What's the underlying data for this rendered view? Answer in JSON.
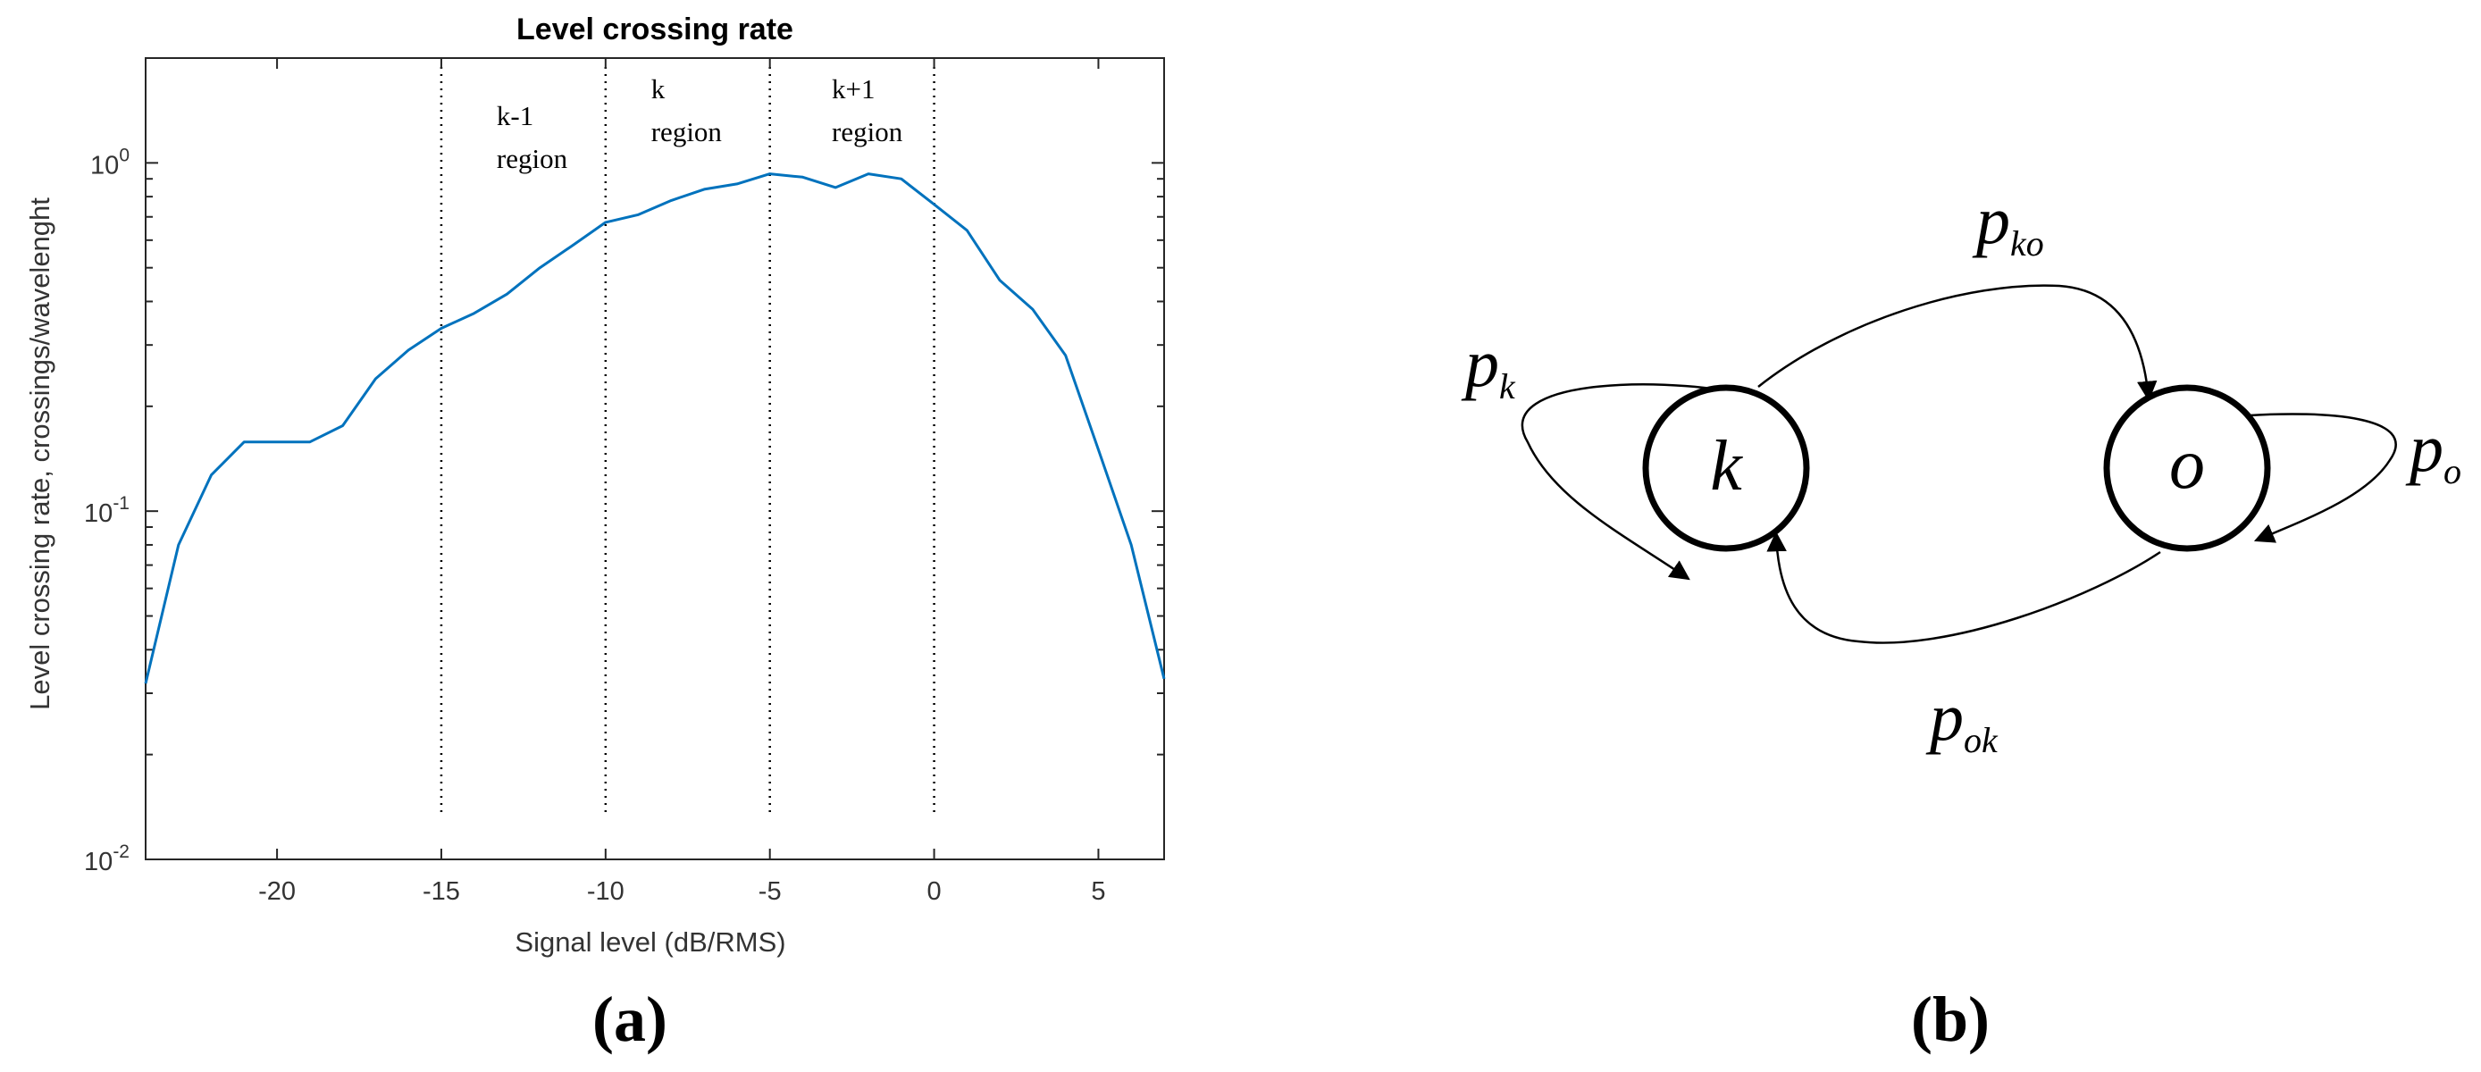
{
  "chart_data": {
    "type": "line",
    "title": "Level crossing rate",
    "xlabel": "Signal level (dB/RMS)",
    "ylabel": "Level crossing rate, crossings/wavelenght",
    "xlim": [
      -24,
      7
    ],
    "ylim": [
      0.01,
      2
    ],
    "yscale": "log",
    "grid": false,
    "x_ticks": [
      "-20",
      "-15",
      "-10",
      "-5",
      "0",
      "5"
    ],
    "y_ticks": [
      {
        "base": "10",
        "exp": "-2"
      },
      {
        "base": "10",
        "exp": "-1"
      },
      {
        "base": "10",
        "exp": "0"
      }
    ],
    "region_boundaries": [
      -15,
      -10,
      -5,
      0
    ],
    "region_labels": [
      {
        "lines": [
          "k-1",
          "region"
        ],
        "x": -12.5
      },
      {
        "lines": [
          "k",
          "region"
        ],
        "x": -7.8
      },
      {
        "lines": [
          "k+1",
          "region"
        ],
        "x": -2.3
      }
    ],
    "series": [
      {
        "color": "#0072BD",
        "x": [
          -24,
          -23,
          -22,
          -21,
          -20,
          -19,
          -18,
          -17,
          -16,
          -15,
          -14,
          -13,
          -12,
          -11,
          -10,
          -9,
          -8,
          -7,
          -6,
          -5,
          -4,
          -3,
          -2,
          -1,
          0,
          1,
          2,
          3,
          4,
          5,
          6,
          7
        ],
        "y": [
          0.032,
          0.08,
          0.127,
          0.158,
          0.158,
          0.158,
          0.176,
          0.24,
          0.29,
          0.335,
          0.37,
          0.42,
          0.5,
          0.58,
          0.675,
          0.71,
          0.78,
          0.84,
          0.87,
          0.93,
          0.91,
          0.85,
          0.93,
          0.9,
          0.76,
          0.64,
          0.46,
          0.38,
          0.28,
          0.15,
          0.08,
          0.033
        ]
      }
    ],
    "panel_label": "(a)"
  },
  "diagram": {
    "panel_label": "(b)",
    "nodes": [
      {
        "id": "k",
        "label": "k"
      },
      {
        "id": "o",
        "label": "o"
      }
    ],
    "transitions": [
      {
        "from": "k",
        "to": "k",
        "base": "p",
        "sub": "k"
      },
      {
        "from": "k",
        "to": "o",
        "base": "p",
        "sub": "ko"
      },
      {
        "from": "o",
        "to": "o",
        "base": "p",
        "sub": "o"
      },
      {
        "from": "o",
        "to": "k",
        "base": "p",
        "sub": "ok"
      }
    ]
  }
}
